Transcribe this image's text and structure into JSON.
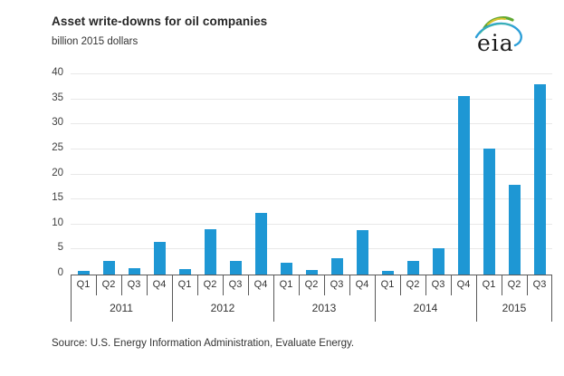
{
  "header": {
    "title": "Asset write-downs for oil companies",
    "subtitle": "billion 2015 dollars"
  },
  "logo": {
    "text": "eia"
  },
  "source": "Source:  U.S. Energy Information Administration, Evaluate Energy.",
  "colors": {
    "bar": "#1E97D4",
    "grid": "#E8E8E8",
    "axis": "#595959",
    "text": "#404040"
  },
  "chart_data": {
    "type": "bar",
    "title": "Asset write-downs for oil companies",
    "ylabel": "billion 2015 dollars",
    "xlabel": "",
    "ylim": [
      0,
      40
    ],
    "ytick_step": 5,
    "grid": true,
    "legend": "none",
    "categories": [
      "Q1 2011",
      "Q2 2011",
      "Q3 2011",
      "Q4 2011",
      "Q1 2012",
      "Q2 2012",
      "Q3 2012",
      "Q4 2012",
      "Q1 2013",
      "Q2 2013",
      "Q3 2013",
      "Q4 2013",
      "Q1 2014",
      "Q2 2014",
      "Q3 2014",
      "Q4 2014",
      "Q1 2015",
      "Q2 2015",
      "Q3 2015"
    ],
    "groups": [
      {
        "year": "2011",
        "quarters": [
          "Q1",
          "Q2",
          "Q3",
          "Q4"
        ],
        "values": [
          0.7,
          2.8,
          1.2,
          6.5
        ]
      },
      {
        "year": "2012",
        "quarters": [
          "Q1",
          "Q2",
          "Q3",
          "Q4"
        ],
        "values": [
          1.1,
          9.1,
          2.7,
          12.3
        ]
      },
      {
        "year": "2013",
        "quarters": [
          "Q1",
          "Q2",
          "Q3",
          "Q4"
        ],
        "values": [
          2.3,
          0.9,
          3.2,
          8.8
        ]
      },
      {
        "year": "2014",
        "quarters": [
          "Q1",
          "Q2",
          "Q3",
          "Q4"
        ],
        "values": [
          0.8,
          2.8,
          5.3,
          35.7
        ]
      },
      {
        "year": "2015",
        "quarters": [
          "Q1",
          "Q2",
          "Q3"
        ],
        "values": [
          25.2,
          18.0,
          38.1
        ]
      }
    ]
  }
}
